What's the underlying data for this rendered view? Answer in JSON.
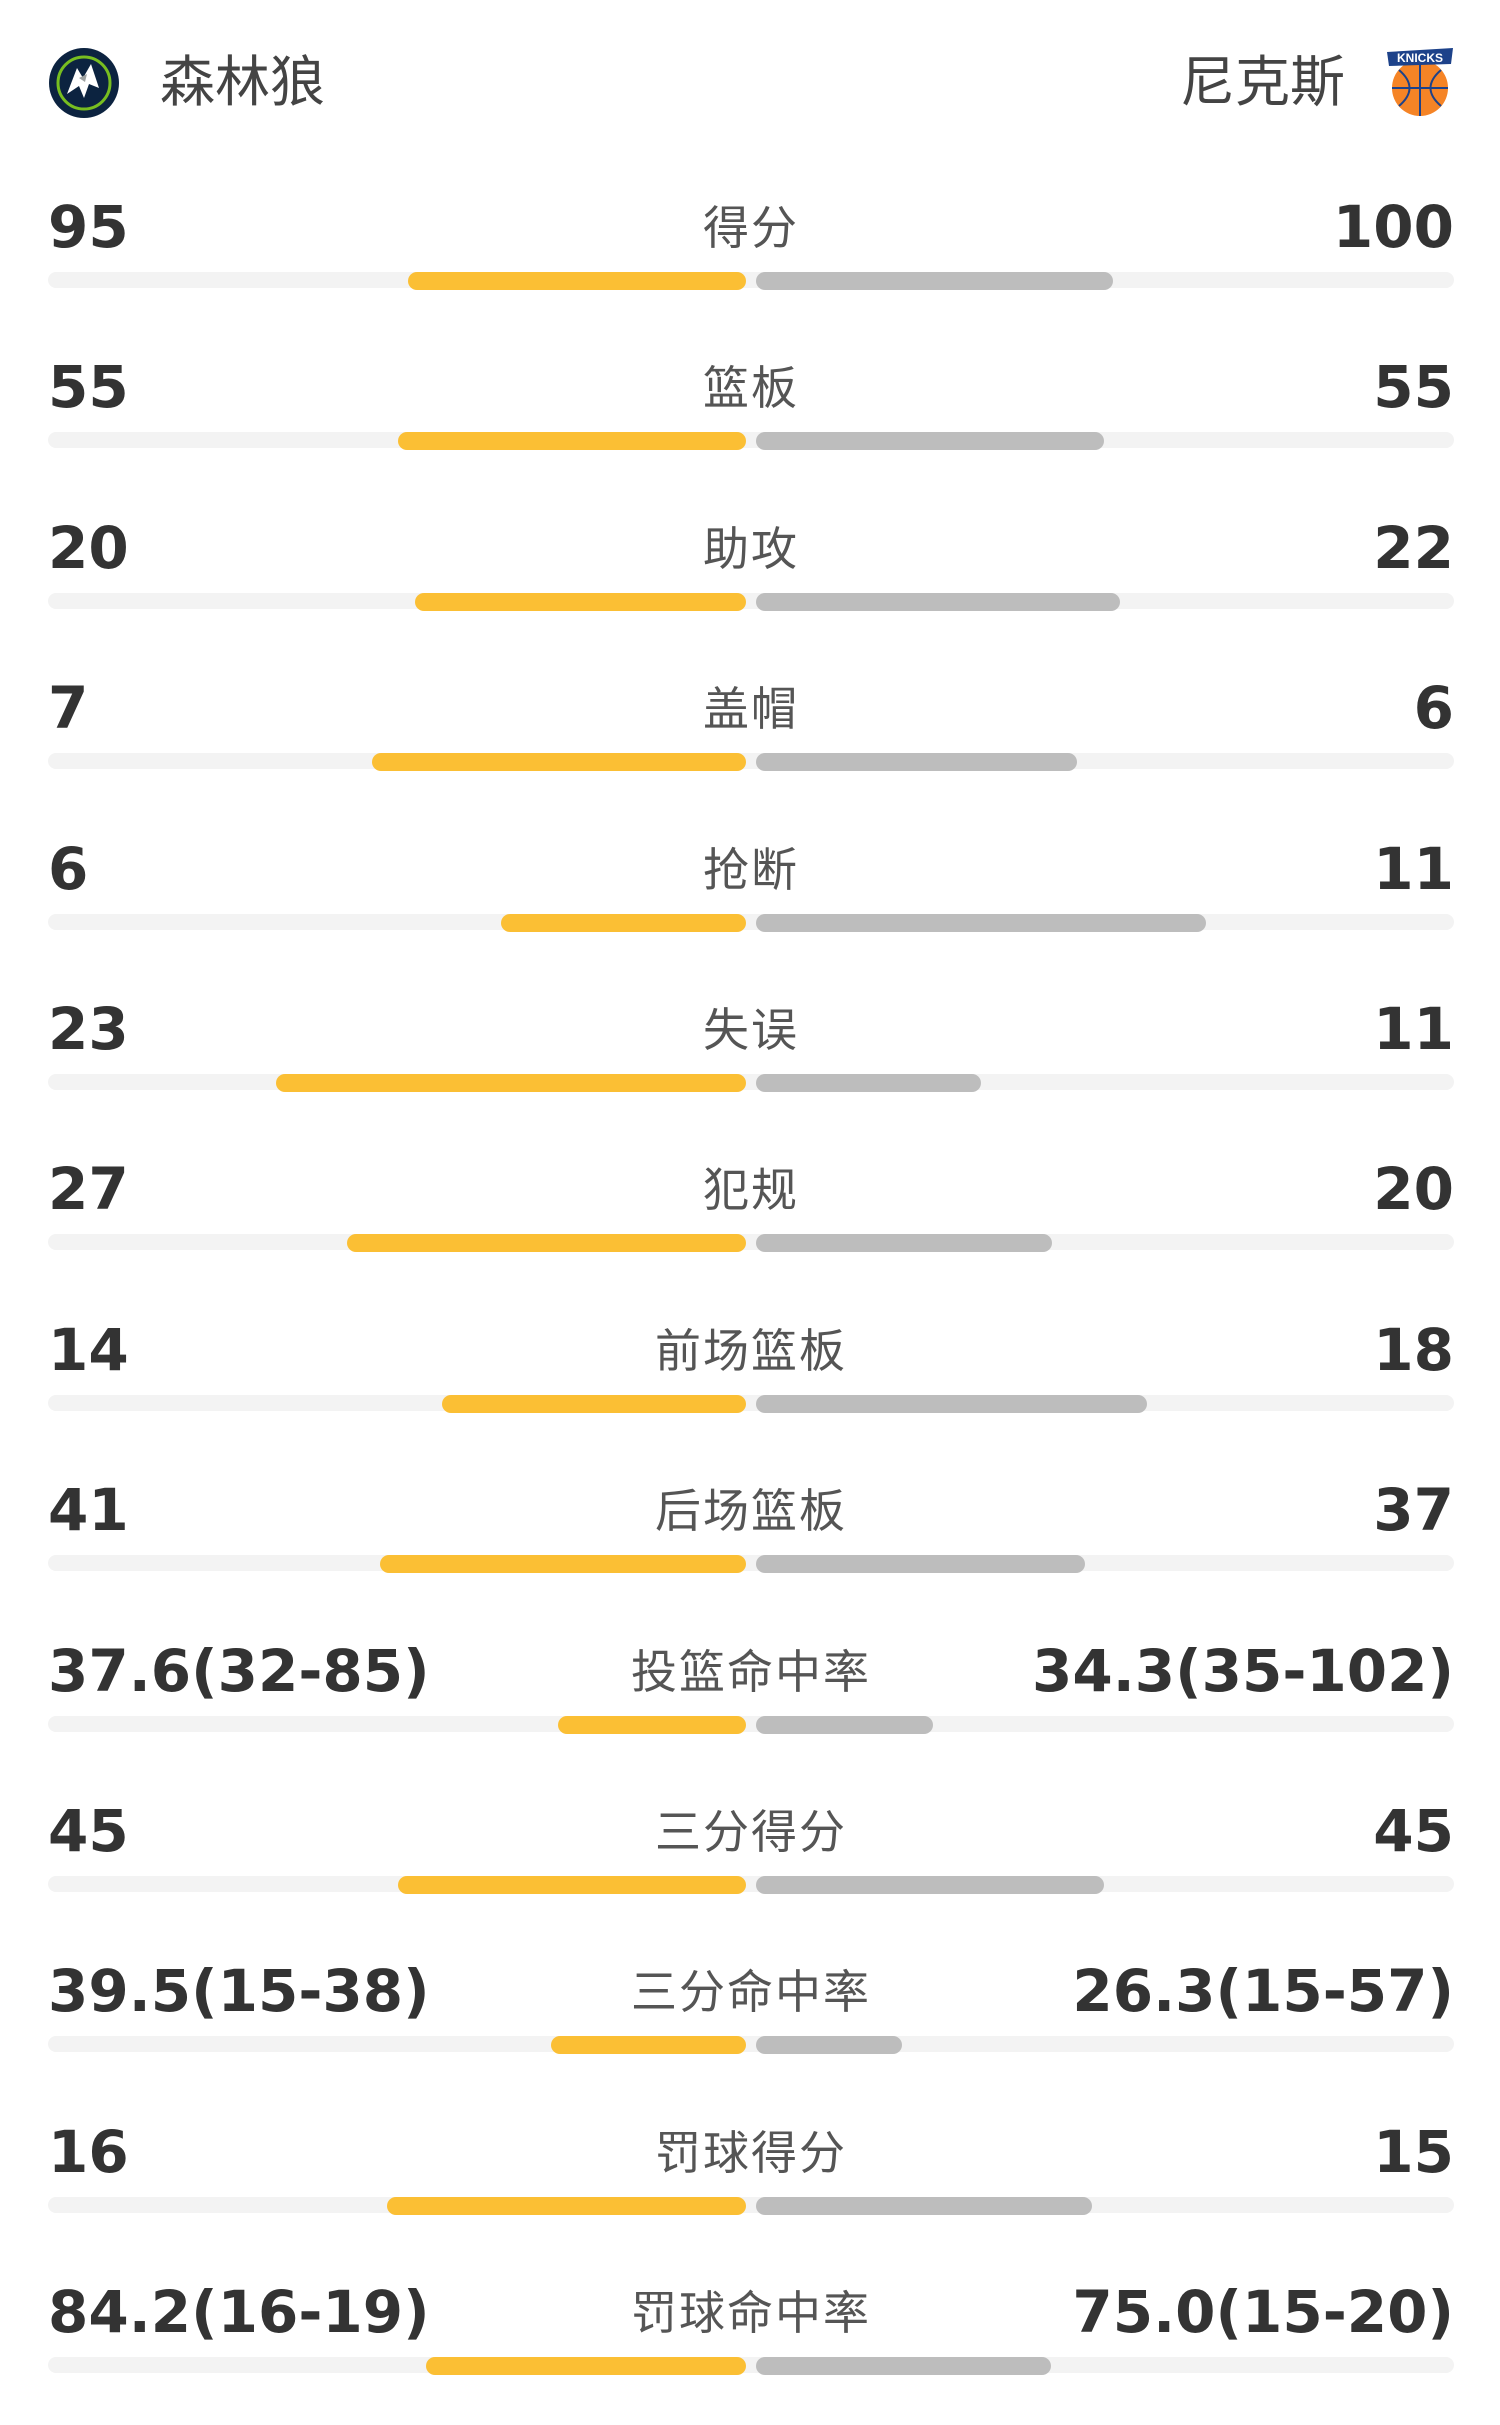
{
  "header": {
    "left_team": {
      "name": "森林狼",
      "logo_icon": "timberwolves-logo-icon"
    },
    "right_team": {
      "name": "尼克斯",
      "logo_icon": "knicks-logo-icon",
      "logo_text": "KNICKS"
    }
  },
  "colors": {
    "left_bar": "#fbbf34",
    "right_bar": "#bdbdbd",
    "track": "#f3f3f3"
  },
  "stats": [
    {
      "label": "得分",
      "left": "95",
      "right": "100",
      "left_share": 0.487,
      "right_share": 0.513
    },
    {
      "label": "篮板",
      "left": "55",
      "right": "55",
      "left_share": 0.5,
      "right_share": 0.5
    },
    {
      "label": "助攻",
      "left": "20",
      "right": "22",
      "left_share": 0.476,
      "right_share": 0.524
    },
    {
      "label": "盖帽",
      "left": "7",
      "right": "6",
      "left_share": 0.538,
      "right_share": 0.462
    },
    {
      "label": "抢断",
      "left": "6",
      "right": "11",
      "left_share": 0.353,
      "right_share": 0.647
    },
    {
      "label": "失误",
      "left": "23",
      "right": "11",
      "left_share": 0.676,
      "right_share": 0.324
    },
    {
      "label": "犯规",
      "left": "27",
      "right": "20",
      "left_share": 0.574,
      "right_share": 0.426
    },
    {
      "label": "前场篮板",
      "left": "14",
      "right": "18",
      "left_share": 0.438,
      "right_share": 0.563
    },
    {
      "label": "后场篮板",
      "left": "41",
      "right": "37",
      "left_share": 0.526,
      "right_share": 0.474
    },
    {
      "label": "投篮命中率",
      "left": "37.6(32-85)",
      "right": "34.3(35-102)",
      "left_share": 0.27,
      "right_share": 0.255
    },
    {
      "label": "三分得分",
      "left": "45",
      "right": "45",
      "left_share": 0.5,
      "right_share": 0.5
    },
    {
      "label": "三分命中率",
      "left": "39.5(15-38)",
      "right": "26.3(15-57)",
      "left_share": 0.28,
      "right_share": 0.21
    },
    {
      "label": "罚球得分",
      "left": "16",
      "right": "15",
      "left_share": 0.516,
      "right_share": 0.484
    },
    {
      "label": "罚球命中率",
      "left": "84.2(16-19)",
      "right": "75.0(15-20)",
      "left_share": 0.46,
      "right_share": 0.425
    }
  ]
}
